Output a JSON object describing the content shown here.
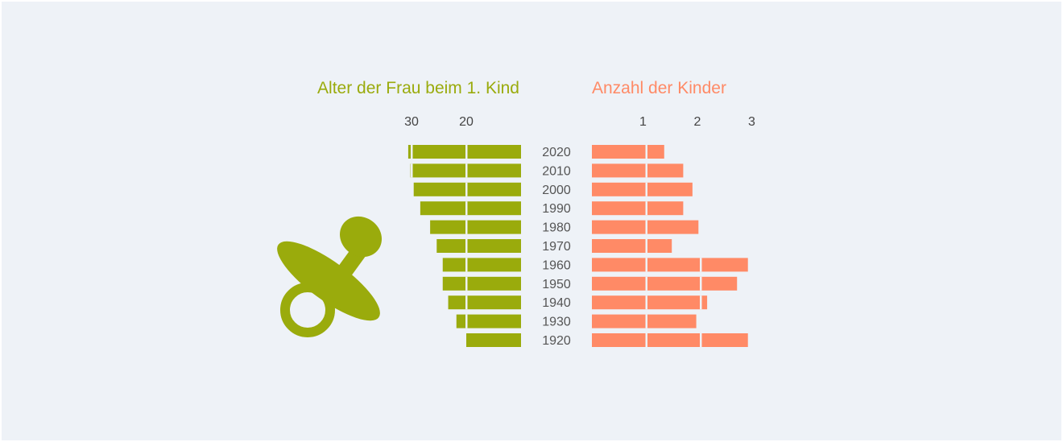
{
  "colors": {
    "age": "#9aab0c",
    "children": "#ff8a66",
    "year_text": "#555555",
    "tick_text": "#444444",
    "icon": "#9aab0c"
  },
  "icon": {
    "name": "pacifier-icon"
  },
  "chart_data": [
    {
      "type": "bar",
      "title": "Alter der Frau beim 1. Kind",
      "orientation": "horizontal",
      "direction": "right-to-left",
      "categories": [
        "2020",
        "2010",
        "2000",
        "1990",
        "1980",
        "1970",
        "1960",
        "1950",
        "1940",
        "1930",
        "1920"
      ],
      "values": [
        30.6,
        30.2,
        29.6,
        28.4,
        26.6,
        25.4,
        24.3,
        24.3,
        23.3,
        21.8,
        20.0
      ],
      "ticks": [
        30,
        20
      ],
      "grid_lines_at": [
        20,
        30
      ],
      "xlim": [
        10,
        31
      ]
    },
    {
      "type": "bar",
      "title": "Anzahl der Kinder",
      "orientation": "horizontal",
      "categories": [
        "2020",
        "2010",
        "2000",
        "1990",
        "1980",
        "1970",
        "1960",
        "1950",
        "1940",
        "1930",
        "1920"
      ],
      "values": [
        1.33,
        1.68,
        1.85,
        1.68,
        1.96,
        1.47,
        2.87,
        2.67,
        2.12,
        1.92,
        2.87
      ],
      "ticks": [
        1,
        2,
        3
      ],
      "grid_lines_at": [
        1,
        2
      ],
      "xlim": [
        0,
        3
      ]
    }
  ]
}
